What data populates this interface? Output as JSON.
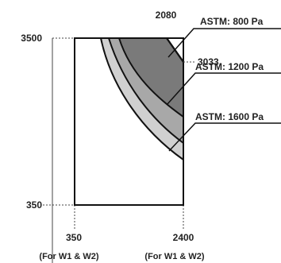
{
  "diagram": {
    "y_labels": {
      "top": "3500",
      "bottom": "350"
    },
    "x_labels": {
      "left": "350",
      "right": "2400",
      "left_note": "(For W1 & W2)",
      "right_note": "(For W1 & W2)"
    },
    "top_label": "2080",
    "side_label": "3033",
    "zones": [
      {
        "label": "ASTM: 800 Pa",
        "fill": "#7a7a7a"
      },
      {
        "label": "ASTM: 1200 Pa",
        "fill": "#a8a8a8"
      },
      {
        "label": "ASTM: 1600 Pa",
        "fill": "#d0d0d0"
      }
    ],
    "colors": {
      "outline": "#111111",
      "guide": "#444444",
      "background": "#ffffff"
    }
  }
}
